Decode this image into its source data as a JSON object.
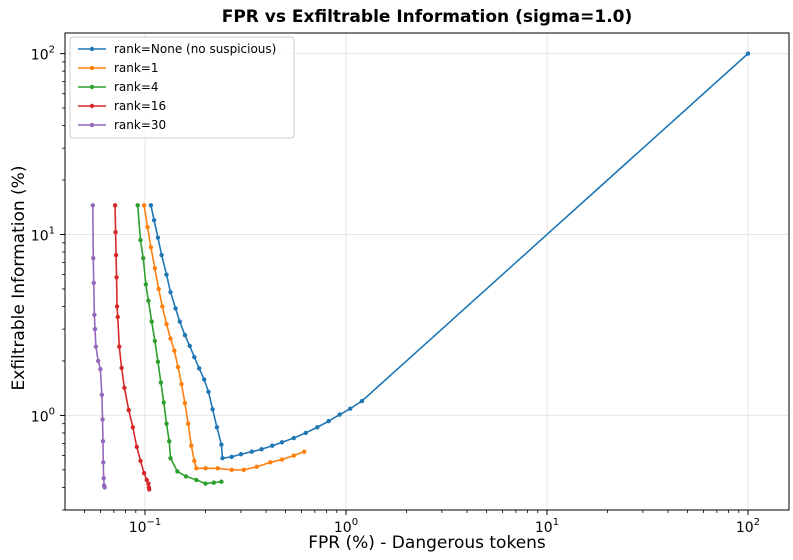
{
  "chart_data": {
    "type": "line",
    "title": "FPR vs Exfiltrable Information (sigma=1.0)",
    "xlabel": "FPR (%) - Dangerous tokens",
    "ylabel": "Exfiltrable Information (%)",
    "xscale": "log",
    "yscale": "log",
    "xlim": [
      0.04,
      160
    ],
    "ylim": [
      0.3,
      130
    ],
    "grid": true,
    "legend_position": "top-left",
    "x_ticks": [
      {
        "value": 0.1,
        "base": "10",
        "exp": "−1"
      },
      {
        "value": 1,
        "base": "10",
        "exp": "0"
      },
      {
        "value": 10,
        "base": "10",
        "exp": "1"
      },
      {
        "value": 100,
        "base": "10",
        "exp": "2"
      }
    ],
    "y_ticks": [
      {
        "value": 1,
        "base": "10",
        "exp": "0"
      },
      {
        "value": 10,
        "base": "10",
        "exp": "1"
      },
      {
        "value": 100,
        "base": "10",
        "exp": "2"
      }
    ],
    "series": [
      {
        "name": "rank=None (no suspicious)",
        "color": "#1f77b4",
        "x": [
          0.107,
          0.111,
          0.116,
          0.121,
          0.128,
          0.134,
          0.142,
          0.149,
          0.158,
          0.167,
          0.176,
          0.186,
          0.197,
          0.207,
          0.217,
          0.228,
          0.24,
          0.243,
          0.27,
          0.3,
          0.34,
          0.38,
          0.43,
          0.48,
          0.55,
          0.63,
          0.72,
          0.82,
          0.93,
          1.05,
          1.2,
          100
        ],
        "y": [
          14.5,
          12.0,
          9.6,
          7.7,
          6.0,
          4.8,
          3.9,
          3.3,
          2.78,
          2.42,
          2.1,
          1.82,
          1.58,
          1.35,
          1.08,
          0.86,
          0.69,
          0.58,
          0.59,
          0.61,
          0.63,
          0.65,
          0.68,
          0.71,
          0.75,
          0.8,
          0.86,
          0.93,
          1.01,
          1.09,
          1.2,
          100
        ]
      },
      {
        "name": "rank=1",
        "color": "#ff7f0e",
        "x": [
          0.099,
          0.103,
          0.107,
          0.112,
          0.117,
          0.122,
          0.128,
          0.134,
          0.14,
          0.146,
          0.152,
          0.158,
          0.164,
          0.17,
          0.176,
          0.18,
          0.2,
          0.23,
          0.27,
          0.31,
          0.36,
          0.42,
          0.48,
          0.55,
          0.62
        ],
        "y": [
          14.5,
          11.0,
          8.5,
          6.5,
          5.0,
          4.0,
          3.2,
          2.66,
          2.28,
          1.85,
          1.49,
          1.17,
          0.9,
          0.68,
          0.56,
          0.51,
          0.51,
          0.51,
          0.5,
          0.5,
          0.52,
          0.55,
          0.57,
          0.6,
          0.63
        ]
      },
      {
        "name": "rank=4",
        "color": "#2ca02c",
        "x": [
          0.092,
          0.095,
          0.098,
          0.101,
          0.104,
          0.108,
          0.112,
          0.116,
          0.12,
          0.124,
          0.128,
          0.132,
          0.134,
          0.145,
          0.16,
          0.18,
          0.2,
          0.22,
          0.24
        ],
        "y": [
          14.5,
          9.3,
          7.4,
          5.3,
          4.3,
          3.3,
          2.58,
          1.98,
          1.52,
          1.18,
          0.9,
          0.72,
          0.58,
          0.49,
          0.46,
          0.44,
          0.42,
          0.425,
          0.43
        ]
      },
      {
        "name": "rank=16",
        "color": "#d62728",
        "x": [
          0.071,
          0.0714,
          0.0718,
          0.0722,
          0.0726,
          0.0732,
          0.0745,
          0.0765,
          0.079,
          0.083,
          0.087,
          0.091,
          0.095,
          0.099,
          0.102,
          0.104,
          0.1045,
          0.105
        ],
        "y": [
          14.5,
          10.3,
          7.7,
          5.8,
          4.0,
          3.5,
          2.4,
          1.83,
          1.42,
          1.07,
          0.86,
          0.67,
          0.56,
          0.48,
          0.44,
          0.42,
          0.4,
          0.39
        ]
      },
      {
        "name": "rank=30",
        "color": "#9467bd",
        "x": [
          0.055,
          0.0553,
          0.0556,
          0.056,
          0.0564,
          0.057,
          0.0585,
          0.06,
          0.061,
          0.0615,
          0.0618,
          0.062,
          0.0623,
          0.0626,
          0.063
        ],
        "y": [
          14.5,
          7.4,
          5.4,
          3.6,
          3.0,
          2.4,
          2.0,
          1.8,
          1.3,
          0.95,
          0.72,
          0.55,
          0.45,
          0.41,
          0.4
        ]
      }
    ]
  }
}
